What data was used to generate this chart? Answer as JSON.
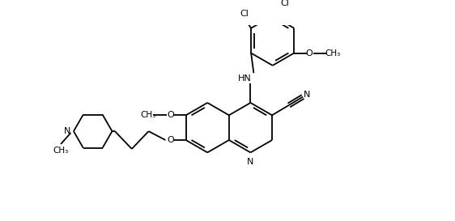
{
  "bg": "#ffffff",
  "lc": "black",
  "lw": 1.3,
  "fs": 8.0,
  "fs_small": 7.5,
  "figsize": [
    5.62,
    2.73
  ],
  "dpi": 100,
  "xlim": [
    0,
    10
  ],
  "ylim": [
    0,
    4.86
  ]
}
